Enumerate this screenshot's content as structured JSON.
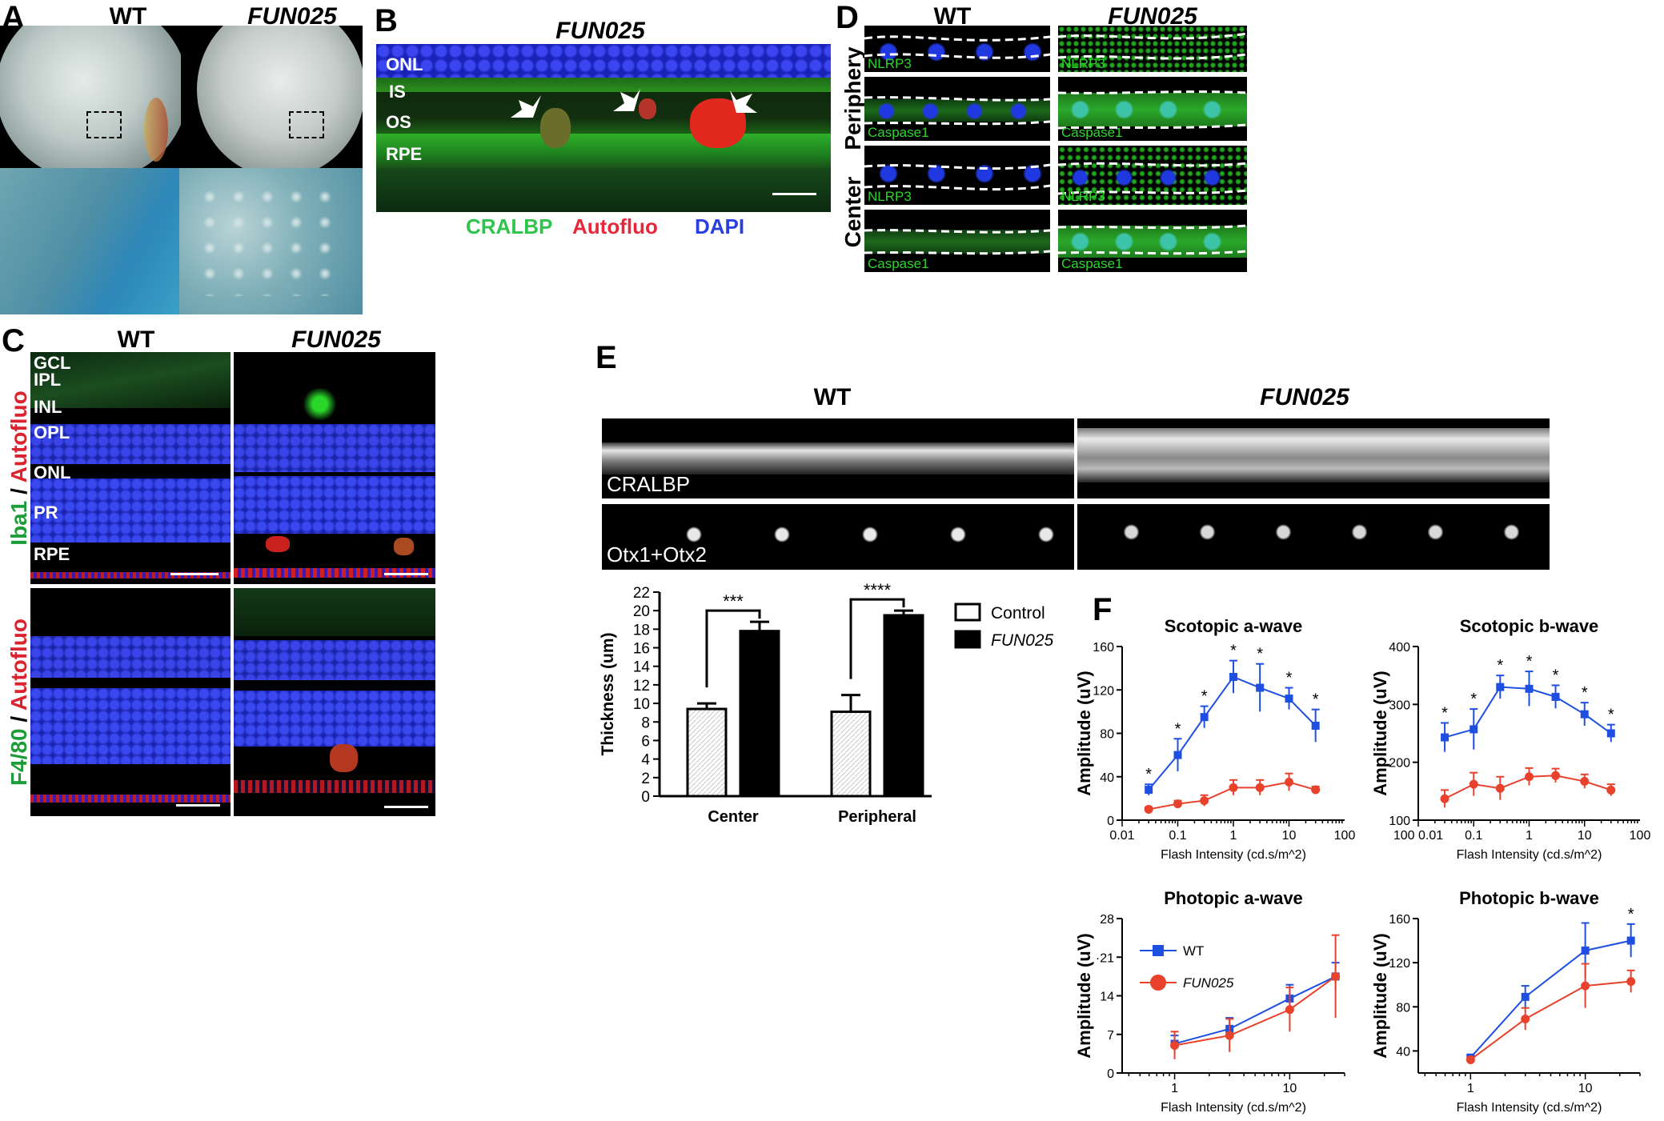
{
  "panels": {
    "A": {
      "label": "A",
      "wt": "WT",
      "fun": "FUN025"
    },
    "B": {
      "label": "B",
      "title": "FUN025",
      "layers": [
        "ONL",
        "IS",
        "OS",
        "RPE"
      ],
      "legend": [
        {
          "text": "CRALBP",
          "color": "#2fc44c"
        },
        {
          "text": "Autofluo",
          "color": "#e8273a"
        },
        {
          "text": "DAPI",
          "color": "#2a3fe0"
        }
      ]
    },
    "C": {
      "label": "C",
      "wt": "WT",
      "fun": "FUN025",
      "layers": [
        "GCL",
        "IPL",
        "INL",
        "OPL",
        "ONL",
        "PR",
        "RPE"
      ],
      "row1_left": {
        "green": "Iba1",
        "sep": " / ",
        "red": "Autofluo"
      },
      "row2_left": {
        "green": "F4/80",
        "sep": " / ",
        "red": "Autofluo"
      }
    },
    "D": {
      "label": "D",
      "wt": "WT",
      "fun": "FUN025",
      "rows": [
        "Periphery",
        "Center"
      ],
      "tiles": [
        "NLRP3",
        "Caspase1",
        "NLRP3",
        "Caspase1"
      ]
    },
    "E": {
      "label": "E",
      "wt": "WT",
      "fun": "FUN025",
      "stains": [
        "CRALBP",
        "Otx1+Otx2"
      ]
    },
    "F": {
      "label": "F"
    }
  },
  "chart_data": [
    {
      "id": "E-bar",
      "type": "bar",
      "ylabel": "Thickness (um)",
      "ylim": [
        0,
        22
      ],
      "yticks": [
        0,
        2,
        4,
        6,
        8,
        10,
        12,
        14,
        16,
        18,
        20,
        22
      ],
      "categories": [
        "Center",
        "Peripheral"
      ],
      "series": [
        {
          "name": "Control",
          "values": [
            9.4,
            9.1
          ],
          "err": [
            0.6,
            1.8
          ],
          "color": "#ffffff"
        },
        {
          "name": "FUN025",
          "values": [
            17.8,
            19.5
          ],
          "err": [
            1.0,
            0.5
          ],
          "color": "#000000"
        }
      ],
      "significance": [
        "***",
        "****"
      ],
      "legend": [
        "Control",
        "FUN025"
      ]
    },
    {
      "id": "F-scotopic-a",
      "type": "line",
      "title": "Scotopic a-wave",
      "xlabel": "Flash Intensity (cd.s/m^2)",
      "ylabel": "Amplitude (uV)",
      "xlog": true,
      "xlim": [
        0.01,
        100
      ],
      "ylim": [
        0,
        160
      ],
      "yticks": [
        0,
        40,
        80,
        120,
        160
      ],
      "xticks": [
        0.01,
        0.1,
        1,
        10,
        100
      ],
      "xtick_labels": [
        "0.01",
        "0.1",
        "1",
        "10",
        "100"
      ],
      "x": [
        0.03,
        0.1,
        0.3,
        1,
        3,
        10,
        30
      ],
      "series": [
        {
          "name": "WT",
          "values": [
            28,
            60,
            95,
            132,
            122,
            112,
            87
          ],
          "err": [
            5,
            15,
            10,
            15,
            22,
            10,
            15
          ],
          "color": "#1f4fe0"
        },
        {
          "name": "FUN025",
          "values": [
            10,
            15,
            18,
            30,
            30,
            35,
            28
          ],
          "err": [
            2,
            3,
            5,
            7,
            7,
            8,
            3
          ],
          "color": "#e8412c"
        }
      ],
      "stars": [
        0,
        1,
        2,
        3,
        4,
        5,
        6
      ]
    },
    {
      "id": "F-scotopic-b",
      "type": "line",
      "title": "Scotopic b-wave",
      "xlabel": "Flash Intensity (cd.s/m^2)",
      "ylabel": "Amplitude (uV)",
      "xlog": true,
      "xlim": [
        0.01,
        100
      ],
      "ylim": [
        100,
        400
      ],
      "yticks": [
        100,
        200,
        300,
        400
      ],
      "xticks": [
        0.01,
        0.1,
        1,
        10,
        100
      ],
      "xtick_labels": [
        "100 0.01",
        "0.1",
        "1",
        "10",
        "100"
      ],
      "x": [
        0.03,
        0.1,
        0.3,
        1,
        3,
        10,
        30
      ],
      "series": [
        {
          "name": "WT",
          "values": [
            243,
            257,
            330,
            327,
            313,
            283,
            250
          ],
          "err": [
            25,
            35,
            20,
            30,
            20,
            20,
            15
          ],
          "color": "#1f4fe0"
        },
        {
          "name": "FUN025",
          "values": [
            137,
            162,
            155,
            175,
            177,
            167,
            152
          ],
          "err": [
            15,
            20,
            20,
            15,
            12,
            12,
            10
          ],
          "color": "#e8412c"
        }
      ],
      "stars": [
        0,
        1,
        2,
        3,
        4,
        5,
        6
      ]
    },
    {
      "id": "F-photopic-a",
      "type": "line",
      "title": "Photopic a-wave",
      "xlabel": "Flash Intensity (cd.s/m^2)",
      "ylabel": "Amplitude (uV)",
      "xlog": true,
      "xlim": [
        0.35,
        30
      ],
      "ylim": [
        0,
        28
      ],
      "yticks": [
        0,
        7,
        14,
        21,
        28
      ],
      "ytick_labels": [
        "0",
        "7",
        "14",
        "·21",
        "28"
      ],
      "xticks": [
        1,
        10
      ],
      "xtick_labels": [
        "1",
        "10"
      ],
      "x": [
        1,
        3,
        10,
        25
      ],
      "series": [
        {
          "name": "WT",
          "values": [
            5.3,
            8.0,
            13.5,
            17.5
          ],
          "err": [
            1.5,
            2,
            2.5,
            2.5
          ],
          "color": "#1f4fe0"
        },
        {
          "name": "FUN025",
          "values": [
            5.0,
            6.8,
            11.5,
            17.5
          ],
          "err": [
            2.5,
            3,
            4,
            7.5
          ],
          "color": "#e8412c"
        }
      ],
      "stars": [],
      "legend": [
        "WT",
        "FUN025"
      ]
    },
    {
      "id": "F-photopic-b",
      "type": "line",
      "title": "Photopic b-wave",
      "xlabel": "Flash Intensity (cd.s/m^2)",
      "ylabel": "Amplitude (uV)",
      "xlog": true,
      "xlim": [
        0.35,
        30
      ],
      "ylim": [
        20,
        160
      ],
      "yticks": [
        40,
        80,
        120,
        160
      ],
      "xticks": [
        1,
        10
      ],
      "xtick_labels": [
        "1",
        "10"
      ],
      "x": [
        1,
        3,
        10,
        25
      ],
      "series": [
        {
          "name": "WT",
          "values": [
            34,
            89,
            131,
            140
          ],
          "err": [
            2,
            10,
            25,
            15
          ],
          "color": "#1f4fe0"
        },
        {
          "name": "FUN025",
          "values": [
            32,
            69,
            99,
            103
          ],
          "err": [
            2,
            10,
            20,
            10
          ],
          "color": "#e8412c"
        }
      ],
      "stars": [
        3
      ]
    }
  ]
}
